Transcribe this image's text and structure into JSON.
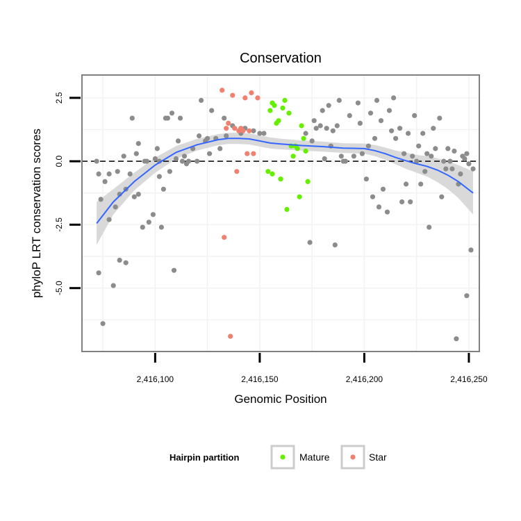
{
  "chart_data": {
    "type": "scatter",
    "title": "Conservation",
    "xlabel": "Genomic Position",
    "ylabel": "phyloP LRT conservation scores",
    "xlim": [
      2416065,
      2416255
    ],
    "ylim": [
      -7.5,
      3.4
    ],
    "x_ticks": [
      2416100,
      2416150,
      2416200,
      2416250
    ],
    "x_tick_labels": [
      "2,416,100",
      "2,416,150",
      "2,416,200",
      "2,416,250"
    ],
    "y_ticks": [
      -5.0,
      -2.5,
      0.0,
      2.5
    ],
    "y_tick_labels": [
      "-5.0",
      "-2.5",
      "0.0",
      "2.5"
    ],
    "hline": 0.0,
    "legend": {
      "title": "Hairpin partition",
      "position": "bottom",
      "entries": [
        {
          "label": "Mature",
          "color": "#66ee00"
        },
        {
          "label": "Star",
          "color": "#f08070"
        }
      ]
    },
    "colors": {
      "other": "#8c8c8c",
      "mature": "#66ee00",
      "star": "#f08070",
      "smooth": "#3366ff",
      "ribbon": "#d9d9d9",
      "grid": "#f2f2f2",
      "panel_border": "#7f7f7f"
    },
    "series": [
      {
        "name": "Other",
        "points": [
          [
            2416072,
            0.0
          ],
          [
            2416073,
            -0.5
          ],
          [
            2416073,
            -4.4
          ],
          [
            2416074,
            -1.5
          ],
          [
            2416075,
            -6.4
          ],
          [
            2416076,
            -0.8
          ],
          [
            2416078,
            -2.3
          ],
          [
            2416078,
            -0.5
          ],
          [
            2416080,
            -4.9
          ],
          [
            2416081,
            -1.8
          ],
          [
            2416082,
            -0.4
          ],
          [
            2416083,
            -1.3
          ],
          [
            2416083,
            -3.9
          ],
          [
            2416085,
            0.2
          ],
          [
            2416086,
            -1.1
          ],
          [
            2416086,
            -4.0
          ],
          [
            2416088,
            -0.5
          ],
          [
            2416089,
            1.7
          ],
          [
            2416090,
            -1.4
          ],
          [
            2416091,
            0.3
          ],
          [
            2416092,
            -1.3
          ],
          [
            2416092,
            0.7
          ],
          [
            2416094,
            -2.6
          ],
          [
            2416095,
            0.0
          ],
          [
            2416096,
            0.0
          ],
          [
            2416097,
            -2.4
          ],
          [
            2416099,
            -2.1
          ],
          [
            2416100,
            0.1
          ],
          [
            2416101,
            0.5
          ],
          [
            2416102,
            -0.6
          ],
          [
            2416102,
            0.0
          ],
          [
            2416103,
            -2.6
          ],
          [
            2416104,
            -1.1
          ],
          [
            2416105,
            1.7
          ],
          [
            2416106,
            1.7
          ],
          [
            2416107,
            -0.4
          ],
          [
            2416108,
            1.9
          ],
          [
            2416109,
            -4.3
          ],
          [
            2416110,
            0.1
          ],
          [
            2416111,
            0.8
          ],
          [
            2416112,
            1.7
          ],
          [
            2416113,
            0.0
          ],
          [
            2416114,
            0.2
          ],
          [
            2416115,
            -0.1
          ],
          [
            2416116,
            0.0
          ],
          [
            2416118,
            0.5
          ],
          [
            2416120,
            0.0
          ],
          [
            2416121,
            1.0
          ],
          [
            2416122,
            2.4
          ],
          [
            2416124,
            0.8
          ],
          [
            2416125,
            0.9
          ],
          [
            2416126,
            0.3
          ],
          [
            2416127,
            2.0
          ],
          [
            2416129,
            0.9
          ],
          [
            2416131,
            0.5
          ],
          [
            2416133,
            1.7
          ],
          [
            2416134,
            1.0
          ],
          [
            2416137,
            1.4
          ],
          [
            2416141,
            1.1
          ],
          [
            2416143,
            1.3
          ],
          [
            2416147,
            1.2
          ],
          [
            2416150,
            1.1
          ],
          [
            2416152,
            1.1
          ],
          [
            2416172,
            1.1
          ],
          [
            2416174,
            -3.2
          ],
          [
            2416175,
            0.8
          ],
          [
            2416176,
            1.6
          ],
          [
            2416177,
            1.3
          ],
          [
            2416179,
            1.4
          ],
          [
            2416180,
            2.0
          ],
          [
            2416181,
            0.1
          ],
          [
            2416182,
            1.3
          ],
          [
            2416183,
            2.2
          ],
          [
            2416184,
            0.6
          ],
          [
            2416185,
            1.2
          ],
          [
            2416186,
            -3.3
          ],
          [
            2416187,
            1.4
          ],
          [
            2416188,
            2.4
          ],
          [
            2416189,
            0.2
          ],
          [
            2416190,
            0.0
          ],
          [
            2416191,
            0.0
          ],
          [
            2416193,
            1.8
          ],
          [
            2416195,
            0.2
          ],
          [
            2416197,
            2.3
          ],
          [
            2416198,
            1.5
          ],
          [
            2416199,
            0.3
          ],
          [
            2416201,
            -0.7
          ],
          [
            2416202,
            0.6
          ],
          [
            2416203,
            1.9
          ],
          [
            2416204,
            -1.4
          ],
          [
            2416205,
            0.9
          ],
          [
            2416206,
            2.4
          ],
          [
            2416207,
            -1.8
          ],
          [
            2416208,
            1.6
          ],
          [
            2416209,
            -1.1
          ],
          [
            2416211,
            -2.0
          ],
          [
            2416212,
            2.0
          ],
          [
            2416213,
            1.2
          ],
          [
            2416214,
            2.5
          ],
          [
            2416215,
            0.9
          ],
          [
            2416217,
            1.3
          ],
          [
            2416218,
            -1.6
          ],
          [
            2416219,
            0.3
          ],
          [
            2416220,
            -0.9
          ],
          [
            2416221,
            1.1
          ],
          [
            2416222,
            -1.6
          ],
          [
            2416223,
            0.2
          ],
          [
            2416224,
            1.8
          ],
          [
            2416225,
            0.0
          ],
          [
            2416226,
            0.6
          ],
          [
            2416227,
            -0.9
          ],
          [
            2416228,
            1.1
          ],
          [
            2416229,
            -0.4
          ],
          [
            2416230,
            0.3
          ],
          [
            2416231,
            -2.6
          ],
          [
            2416232,
            0.2
          ],
          [
            2416233,
            1.3
          ],
          [
            2416234,
            0.5
          ],
          [
            2416236,
            1.7
          ],
          [
            2416237,
            -1.4
          ],
          [
            2416238,
            0.0
          ],
          [
            2416239,
            -0.3
          ],
          [
            2416240,
            0.5
          ],
          [
            2416241,
            0.0
          ],
          [
            2416242,
            -0.3
          ],
          [
            2416243,
            0.4
          ],
          [
            2416244,
            -7.0
          ],
          [
            2416245,
            -0.9
          ],
          [
            2416246,
            -0.5
          ],
          [
            2416247,
            0.2
          ],
          [
            2416248,
            0.1
          ],
          [
            2416249,
            0.3
          ],
          [
            2416249,
            -5.3
          ],
          [
            2416250,
            -0.1
          ],
          [
            2416251,
            -3.5
          ],
          [
            2416252,
            -0.3
          ]
        ]
      },
      {
        "name": "Mature",
        "points": [
          [
            2416154,
            -0.4
          ],
          [
            2416155,
            2.0
          ],
          [
            2416156,
            2.3
          ],
          [
            2416156,
            -0.5
          ],
          [
            2416157,
            2.2
          ],
          [
            2416158,
            1.5
          ],
          [
            2416159,
            1.6
          ],
          [
            2416160,
            -0.7
          ],
          [
            2416161,
            2.1
          ],
          [
            2416162,
            2.4
          ],
          [
            2416163,
            -1.9
          ],
          [
            2416164,
            1.9
          ],
          [
            2416165,
            0.6
          ],
          [
            2416166,
            0.2
          ],
          [
            2416167,
            0.6
          ],
          [
            2416168,
            0.5
          ],
          [
            2416169,
            -1.4
          ],
          [
            2416170,
            1.4
          ],
          [
            2416171,
            0.9
          ],
          [
            2416172,
            0.4
          ],
          [
            2416173,
            -0.8
          ]
        ]
      },
      {
        "name": "Star",
        "points": [
          [
            2416132,
            2.8
          ],
          [
            2416133,
            -3.0
          ],
          [
            2416134,
            1.3
          ],
          [
            2416135,
            1.5
          ],
          [
            2416136,
            -6.9
          ],
          [
            2416137,
            2.6
          ],
          [
            2416138,
            1.3
          ],
          [
            2416139,
            -0.4
          ],
          [
            2416140,
            1.2
          ],
          [
            2416141,
            1.3
          ],
          [
            2416142,
            1.2
          ],
          [
            2416143,
            2.5
          ],
          [
            2416144,
            0.3
          ],
          [
            2416145,
            1.2
          ],
          [
            2416146,
            2.7
          ],
          [
            2416147,
            0.3
          ],
          [
            2416149,
            2.5
          ]
        ]
      }
    ],
    "smooth_line": {
      "x": [
        2416072,
        2416080,
        2416090,
        2416100,
        2416110,
        2416120,
        2416130,
        2416135,
        2416140,
        2416145,
        2416150,
        2416155,
        2416160,
        2416170,
        2416180,
        2416190,
        2416200,
        2416205,
        2416210,
        2416215,
        2416220,
        2416225,
        2416230,
        2416235,
        2416240,
        2416245,
        2416252
      ],
      "y": [
        -2.45,
        -1.6,
        -0.8,
        -0.15,
        0.35,
        0.65,
        0.85,
        0.9,
        0.9,
        0.88,
        0.8,
        0.72,
        0.68,
        0.62,
        0.58,
        0.52,
        0.5,
        0.42,
        0.3,
        0.15,
        0.02,
        -0.1,
        -0.2,
        -0.35,
        -0.55,
        -0.8,
        -1.25
      ],
      "lower": [
        -3.3,
        -2.1,
        -1.15,
        -0.45,
        0.1,
        0.42,
        0.63,
        0.68,
        0.68,
        0.66,
        0.58,
        0.5,
        0.47,
        0.42,
        0.38,
        0.33,
        0.3,
        0.2,
        0.06,
        -0.12,
        -0.3,
        -0.45,
        -0.6,
        -0.82,
        -1.1,
        -1.45,
        -2.1
      ],
      "upper": [
        -1.6,
        -1.1,
        -0.45,
        0.15,
        0.6,
        0.88,
        1.07,
        1.12,
        1.12,
        1.1,
        1.02,
        0.94,
        0.89,
        0.82,
        0.78,
        0.71,
        0.7,
        0.64,
        0.54,
        0.42,
        0.34,
        0.25,
        0.2,
        0.12,
        0.0,
        -0.15,
        -0.4
      ]
    }
  }
}
